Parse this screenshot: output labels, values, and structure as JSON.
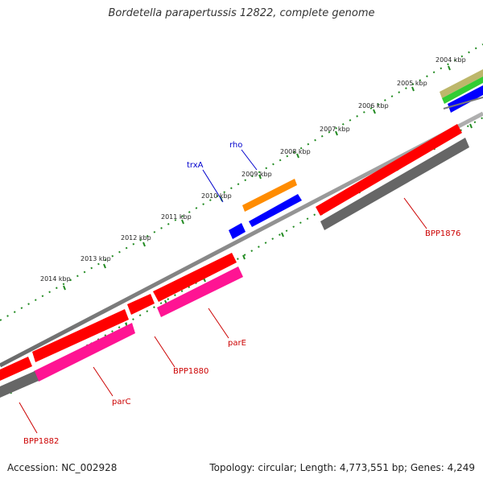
{
  "title": "Bordetella parapertussis 12822, complete genome",
  "footer": {
    "accession": "Accession: NC_002928",
    "summary": "Topology: circular; Length: 4,773,551 bp; Genes: 4,249"
  },
  "colors": {
    "backbone": "#808080",
    "tick": "#228b22",
    "red_feature": "#ff0000",
    "pink_feature": "#ff1493",
    "gray_feature": "#666666",
    "blue_feature": "#0000ff",
    "orange_feature": "#ff8c00",
    "green_feature": "#32cd32",
    "olive_feature": "#bdb76b",
    "label_red": "#cc0000",
    "label_blue": "#0000cc"
  },
  "kbp_labels": [
    "2004 kbp",
    "2005 kbp",
    "2006 kbp",
    "2007 kbp",
    "2008 kbp",
    "2009 kbp",
    "2010 kbp",
    "2011 kbp",
    "2012 kbp",
    "2013 kbp",
    "2014 kbp"
  ],
  "gene_labels": {
    "rho": "rho",
    "trxA": "trxA",
    "BPP1876": "BPP1876",
    "parE": "parE",
    "BPP1880": "BPP1880",
    "parC": "parC",
    "BPP1882": "BPP1882"
  }
}
